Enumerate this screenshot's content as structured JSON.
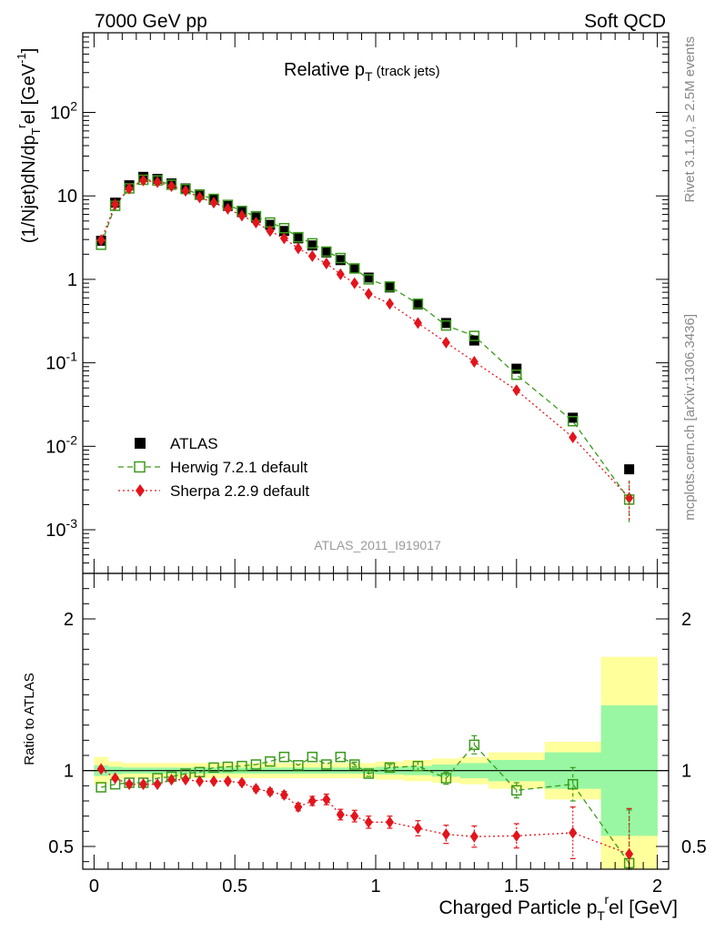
{
  "header": {
    "left": "7000 GeV pp",
    "right": "Soft QCD"
  },
  "side_labels": {
    "top": "Rivet 3.1.10, ≥ 2.5M events",
    "bottom": "mcplots.cern.ch [arXiv:1306.3436]"
  },
  "analysis_id": "ATLAS_2011_I919017",
  "chart_data": [
    {
      "type": "scatter",
      "title": "Relative p",
      "title_sub": "T",
      "title_suffix": " (track jets)",
      "ylabel": "(1/Njet)dN/dp_T^rel [GeV^-1]",
      "yscale": "log",
      "ylim": [
        0.0003,
        900
      ],
      "xlim": [
        -0.04,
        2.04
      ],
      "y_ticks": [
        {
          "label": "10",
          "exp": "-3",
          "value": 0.001
        },
        {
          "label": "10",
          "exp": "-2",
          "value": 0.01
        },
        {
          "label": "10",
          "exp": "-1",
          "value": 0.1
        },
        {
          "label": "1",
          "exp": "",
          "value": 1
        },
        {
          "label": "10",
          "exp": "",
          "value": 10
        },
        {
          "label": "10",
          "exp": "2",
          "value": 100
        }
      ],
      "legend": {
        "position": "lower-left",
        "entries": [
          {
            "name": "ATLAS",
            "marker": "filled-square",
            "color": "#000000"
          },
          {
            "name": "Herwig 7.2.1 default",
            "marker": "open-square",
            "color": "#3a9a1a",
            "line": "dashed"
          },
          {
            "name": "Sherpa 2.2.9 default",
            "marker": "filled-diamond",
            "color": "#e3141c",
            "line": "dotted"
          }
        ]
      },
      "x": [
        0.025,
        0.075,
        0.125,
        0.175,
        0.225,
        0.275,
        0.325,
        0.375,
        0.425,
        0.475,
        0.525,
        0.575,
        0.625,
        0.675,
        0.725,
        0.775,
        0.825,
        0.875,
        0.925,
        0.975,
        1.05,
        1.15,
        1.25,
        1.35,
        1.5,
        1.7,
        1.9
      ],
      "series": [
        {
          "name": "ATLAS",
          "values": [
            2.9,
            8.3,
            13.4,
            16.9,
            16.0,
            14.1,
            12.3,
            10.4,
            9.0,
            7.6,
            6.4,
            5.5,
            4.5,
            3.8,
            3.1,
            2.55,
            2.1,
            1.7,
            1.35,
            1.05,
            0.8,
            0.5,
            0.3,
            0.185,
            0.085,
            0.022,
            0.0053
          ]
        },
        {
          "name": "Herwig 7.2.1 default",
          "values": [
            2.6,
            7.6,
            12.3,
            15.6,
            15.3,
            13.6,
            12.1,
            10.3,
            9.2,
            7.8,
            6.6,
            5.7,
            4.8,
            4.1,
            3.2,
            2.7,
            2.15,
            1.8,
            1.35,
            1.0,
            0.82,
            0.51,
            0.28,
            0.21,
            0.072,
            0.02,
            0.0023
          ]
        },
        {
          "name": "Sherpa 2.2.9 default",
          "values": [
            2.95,
            7.9,
            12.2,
            15.3,
            14.6,
            13.1,
            11.5,
            9.6,
            8.3,
            7.0,
            5.8,
            4.8,
            3.8,
            3.1,
            2.35,
            1.9,
            1.55,
            1.15,
            0.9,
            0.67,
            0.51,
            0.3,
            0.175,
            0.103,
            0.047,
            0.0128,
            0.0024
          ]
        }
      ]
    },
    {
      "type": "scatter",
      "ylabel": "Ratio to ATLAS",
      "xlabel": "Charged Particle p_T^rel [GeV]",
      "ylim": [
        0.35,
        2.3
      ],
      "xlim": [
        -0.04,
        2.04
      ],
      "x_ticks": [
        "0",
        "0.5",
        "1",
        "1.5",
        "2"
      ],
      "x_tick_values": [
        0,
        0.5,
        1,
        1.5,
        2
      ],
      "y_ticks": [
        "0.5",
        "1",
        "2"
      ],
      "y_tick_values": [
        0.5,
        1,
        2
      ],
      "reference_line": 1,
      "bands": {
        "bins": [
          [
            0,
            0.05
          ],
          [
            0.05,
            0.1
          ],
          [
            0.1,
            0.15
          ],
          [
            0.15,
            0.2
          ],
          [
            0.2,
            0.25
          ],
          [
            0.25,
            0.3
          ],
          [
            0.3,
            0.35
          ],
          [
            0.35,
            0.4
          ],
          [
            0.4,
            0.45
          ],
          [
            0.45,
            0.5
          ],
          [
            0.5,
            0.55
          ],
          [
            0.55,
            0.6
          ],
          [
            0.6,
            0.65
          ],
          [
            0.65,
            0.7
          ],
          [
            0.7,
            0.75
          ],
          [
            0.75,
            0.8
          ],
          [
            0.8,
            0.85
          ],
          [
            0.85,
            0.9
          ],
          [
            0.9,
            0.95
          ],
          [
            0.95,
            1.0
          ],
          [
            1.0,
            1.1
          ],
          [
            1.1,
            1.2
          ],
          [
            1.2,
            1.3
          ],
          [
            1.3,
            1.4
          ],
          [
            1.4,
            1.6
          ],
          [
            1.6,
            1.8
          ],
          [
            1.8,
            2.0
          ]
        ],
        "stat": [
          0.035,
          0.025,
          0.02,
          0.02,
          0.02,
          0.02,
          0.02,
          0.02,
          0.02,
          0.02,
          0.02,
          0.02,
          0.02,
          0.02,
          0.02,
          0.02,
          0.02,
          0.02,
          0.02,
          0.02,
          0.025,
          0.03,
          0.04,
          0.05,
          0.07,
          0.12,
          0.43
        ],
        "total": [
          0.09,
          0.06,
          0.05,
          0.05,
          0.05,
          0.05,
          0.05,
          0.05,
          0.05,
          0.05,
          0.05,
          0.05,
          0.05,
          0.05,
          0.05,
          0.05,
          0.05,
          0.05,
          0.05,
          0.05,
          0.06,
          0.07,
          0.08,
          0.09,
          0.12,
          0.19,
          0.75
        ],
        "stat_color": "#99f7a3",
        "total_color": "#ffff9c"
      },
      "series": [
        {
          "name": "Herwig 7.2.1 default",
          "values": [
            0.89,
            0.91,
            0.92,
            0.92,
            0.95,
            0.96,
            0.98,
            0.99,
            1.02,
            1.025,
            1.03,
            1.04,
            1.06,
            1.09,
            1.035,
            1.09,
            1.04,
            1.09,
            1.04,
            0.98,
            1.02,
            1.03,
            0.95,
            1.17,
            0.87,
            0.91,
            0.39
          ],
          "errors": [
            0.008,
            0.008,
            0.008,
            0.008,
            0.008,
            0.008,
            0.008,
            0.008,
            0.008,
            0.008,
            0.008,
            0.008,
            0.01,
            0.01,
            0.012,
            0.012,
            0.014,
            0.015,
            0.016,
            0.018,
            0.02,
            0.03,
            0.04,
            0.06,
            0.05,
            0.11,
            0.35
          ]
        },
        {
          "name": "Sherpa 2.2.9 default",
          "values": [
            1.01,
            0.95,
            0.91,
            0.91,
            0.91,
            0.94,
            0.94,
            0.93,
            0.93,
            0.93,
            0.92,
            0.88,
            0.86,
            0.84,
            0.76,
            0.8,
            0.81,
            0.71,
            0.7,
            0.66,
            0.66,
            0.62,
            0.58,
            0.565,
            0.57,
            0.59,
            0.45
          ],
          "errors": [
            0.012,
            0.012,
            0.012,
            0.012,
            0.012,
            0.012,
            0.014,
            0.014,
            0.015,
            0.016,
            0.016,
            0.018,
            0.02,
            0.022,
            0.025,
            0.03,
            0.035,
            0.035,
            0.038,
            0.04,
            0.04,
            0.05,
            0.06,
            0.07,
            0.08,
            0.17,
            0.3
          ]
        }
      ]
    }
  ]
}
